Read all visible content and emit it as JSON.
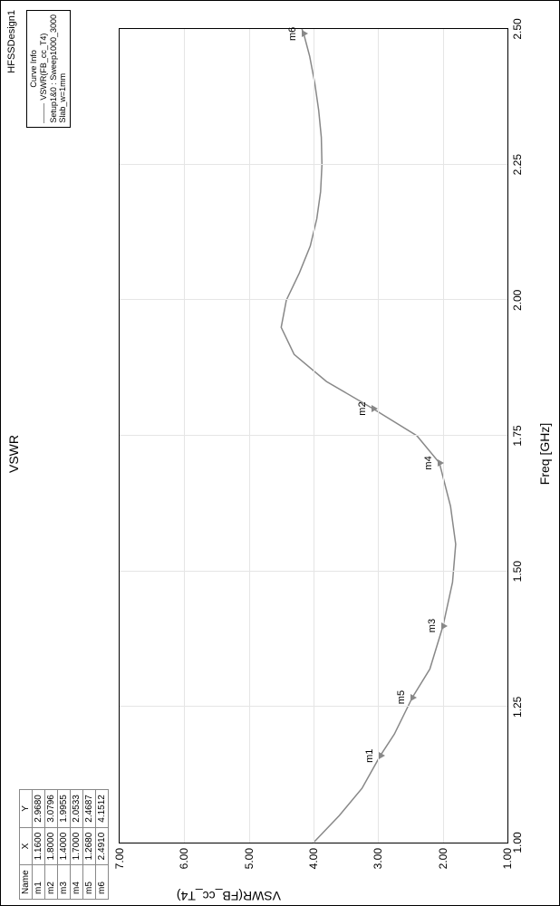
{
  "title": "VSWR",
  "design_label": "HFSSDesign1",
  "xlabel": "Freq [GHz]",
  "ylabel": "VSWR(FB_cc_T4)",
  "marker_table": {
    "headers": [
      "Name",
      "X",
      "Y"
    ],
    "rows": [
      [
        "m1",
        "1.1600",
        "2.9680"
      ],
      [
        "m2",
        "1.8000",
        "3.0796"
      ],
      [
        "m3",
        "1.4000",
        "1.9955"
      ],
      [
        "m4",
        "1.7000",
        "2.0533"
      ],
      [
        "m5",
        "1.2680",
        "2.4687"
      ],
      [
        "m6",
        "2.4910",
        "4.1512"
      ]
    ]
  },
  "legend": {
    "title": "Curve Info",
    "series": "VSWR(FB_cc_T4)",
    "setup": "Setup1&0 : Sweep1000_3000",
    "note": "Slab_w=1mm"
  },
  "chart": {
    "type": "line",
    "xlim": [
      1.0,
      2.5
    ],
    "ylim": [
      1.0,
      7.0
    ],
    "xticks": [
      1.0,
      1.25,
      1.5,
      1.75,
      2.0,
      2.25,
      2.5
    ],
    "xtick_labels": [
      "1.00",
      "1.25",
      "1.50",
      "1.75",
      "2.00",
      "2.25",
      "2.50"
    ],
    "yticks": [
      1.0,
      2.0,
      3.0,
      4.0,
      5.0,
      6.0,
      7.0
    ],
    "ytick_labels": [
      "1.00",
      "2.00",
      "3.00",
      "4.00",
      "5.00",
      "6.00",
      "7.00"
    ],
    "line_color": "#888888",
    "line_width": 1.5,
    "grid_color": "#e5e5e5",
    "background_color": "#ffffff",
    "title_fontsize": 14,
    "label_fontsize": 14,
    "tick_fontsize": 12,
    "series_points": [
      [
        1.0,
        4.0
      ],
      [
        1.05,
        3.6
      ],
      [
        1.1,
        3.25
      ],
      [
        1.16,
        2.968
      ],
      [
        1.2,
        2.75
      ],
      [
        1.268,
        2.4687
      ],
      [
        1.32,
        2.2
      ],
      [
        1.4,
        1.9955
      ],
      [
        1.48,
        1.85
      ],
      [
        1.55,
        1.8
      ],
      [
        1.62,
        1.88
      ],
      [
        1.7,
        2.0533
      ],
      [
        1.75,
        2.4
      ],
      [
        1.8,
        3.0796
      ],
      [
        1.85,
        3.8
      ],
      [
        1.9,
        4.3
      ],
      [
        1.95,
        4.5
      ],
      [
        2.0,
        4.42
      ],
      [
        2.05,
        4.22
      ],
      [
        2.1,
        4.05
      ],
      [
        2.15,
        3.95
      ],
      [
        2.2,
        3.89
      ],
      [
        2.25,
        3.87
      ],
      [
        2.3,
        3.88
      ],
      [
        2.35,
        3.92
      ],
      [
        2.4,
        3.98
      ],
      [
        2.45,
        4.06
      ],
      [
        2.491,
        4.1512
      ],
      [
        2.5,
        4.18
      ]
    ],
    "markers": [
      {
        "name": "m1",
        "x": 1.16,
        "y": 2.968
      },
      {
        "name": "m2",
        "x": 1.8,
        "y": 3.0796
      },
      {
        "name": "m3",
        "x": 1.4,
        "y": 1.9955
      },
      {
        "name": "m4",
        "x": 1.7,
        "y": 2.0533
      },
      {
        "name": "m5",
        "x": 1.268,
        "y": 2.4687
      },
      {
        "name": "m6",
        "x": 2.491,
        "y": 4.1512
      }
    ]
  }
}
